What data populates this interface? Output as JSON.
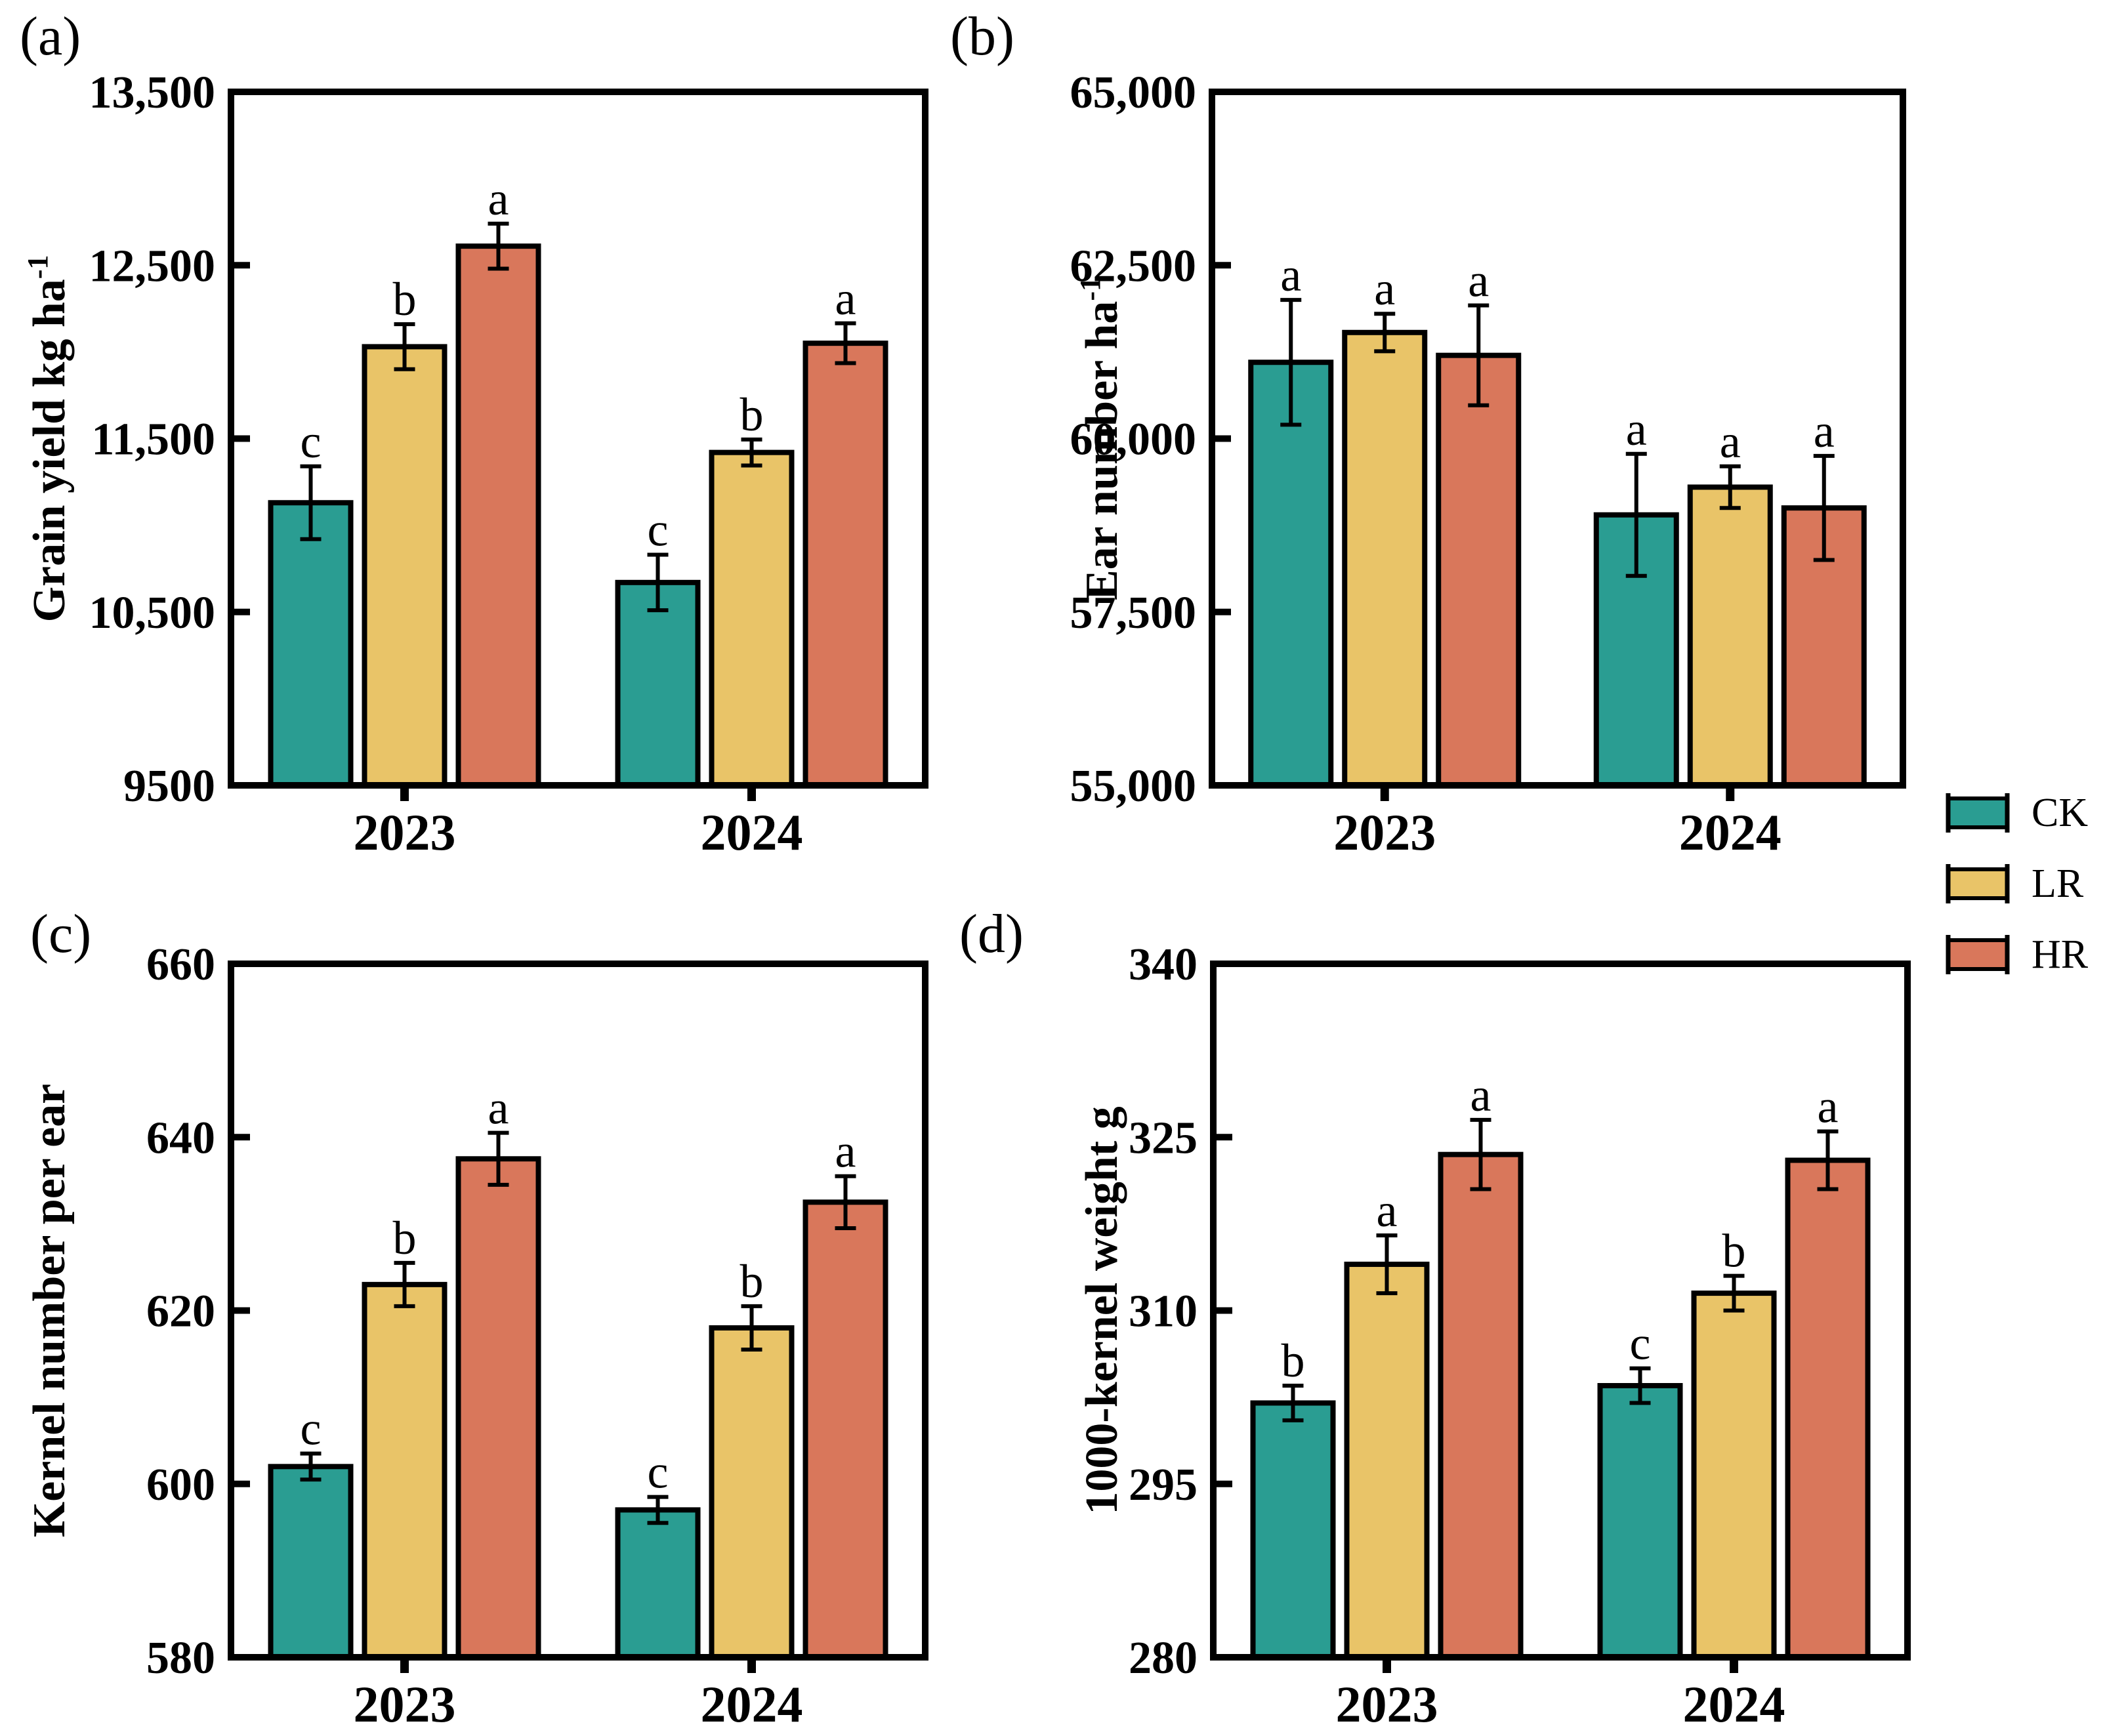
{
  "figure": {
    "background": "#ffffff",
    "axis_color": "#000000"
  },
  "legend": {
    "position": "right-middle",
    "items": [
      {
        "name": "CK",
        "color": "#2a9d92"
      },
      {
        "name": "LR",
        "color": "#e9c468"
      },
      {
        "name": "HR",
        "color": "#d9775b"
      }
    ]
  },
  "chart_data": [
    {
      "id": "a",
      "panel_label": "(a)",
      "type": "bar",
      "title": "",
      "ylabel": "Grain yield kg ha",
      "ylabel_sup": "-1",
      "xlabel": "",
      "ylim": [
        9500,
        13500
      ],
      "ytick_values": [
        13500,
        12500,
        11500,
        10500,
        9500
      ],
      "ytick_labels": [
        "13,500",
        "12,500",
        "11,500",
        "10,500",
        "9500"
      ],
      "categories": [
        "2023",
        "2024"
      ],
      "grid": false,
      "series": [
        {
          "name": "CK",
          "values": [
            11130,
            10670
          ],
          "errors": [
            210,
            160
          ],
          "letters": [
            "c",
            "c"
          ]
        },
        {
          "name": "LR",
          "values": [
            12030,
            11420
          ],
          "errors": [
            130,
            75
          ],
          "letters": [
            "b",
            "b"
          ]
        },
        {
          "name": "HR",
          "values": [
            12610,
            12050
          ],
          "errors": [
            130,
            115
          ],
          "letters": [
            "a",
            "a"
          ]
        }
      ]
    },
    {
      "id": "b",
      "panel_label": "(b)",
      "type": "bar",
      "title": "",
      "ylabel": "Ear number ha",
      "ylabel_sup": "-1",
      "xlabel": "",
      "ylim": [
        55000,
        65000
      ],
      "ytick_values": [
        65000,
        62500,
        60000,
        57500,
        55000
      ],
      "ytick_labels": [
        "65,000",
        "62,500",
        "60,000",
        "57,500",
        "55,000"
      ],
      "categories": [
        "2023",
        "2024"
      ],
      "grid": false,
      "series": [
        {
          "name": "CK",
          "values": [
            61100,
            58900
          ],
          "errors": [
            900,
            880
          ],
          "letters": [
            "a",
            "a"
          ]
        },
        {
          "name": "LR",
          "values": [
            61530,
            59300
          ],
          "errors": [
            270,
            300
          ],
          "letters": [
            "a",
            "a"
          ]
        },
        {
          "name": "HR",
          "values": [
            61200,
            59000
          ],
          "errors": [
            720,
            750
          ],
          "letters": [
            "a",
            "a"
          ]
        }
      ]
    },
    {
      "id": "c",
      "panel_label": "(c)",
      "type": "bar",
      "title": "",
      "ylabel": "Kernel number per ear",
      "ylabel_sup": "",
      "xlabel": "",
      "ylim": [
        580,
        660
      ],
      "ytick_values": [
        660,
        640,
        620,
        600,
        580
      ],
      "ytick_labels": [
        "660",
        "640",
        "620",
        "600",
        "580"
      ],
      "categories": [
        "2023",
        "2024"
      ],
      "grid": false,
      "series": [
        {
          "name": "CK",
          "values": [
            602,
            597
          ],
          "errors": [
            1.5,
            1.5
          ],
          "letters": [
            "c",
            "c"
          ]
        },
        {
          "name": "LR",
          "values": [
            623,
            618
          ],
          "errors": [
            2.5,
            2.5
          ],
          "letters": [
            "b",
            "b"
          ]
        },
        {
          "name": "HR",
          "values": [
            637.5,
            632.5
          ],
          "errors": [
            3,
            3
          ],
          "letters": [
            "a",
            "a"
          ]
        }
      ]
    },
    {
      "id": "d",
      "panel_label": "(d)",
      "type": "bar",
      "title": "",
      "ylabel": "1000-kernel weight g",
      "ylabel_sup": "",
      "xlabel": "",
      "ylim": [
        280,
        340
      ],
      "ytick_values": [
        340,
        325,
        310,
        295,
        280
      ],
      "ytick_labels": [
        "340",
        "325",
        "310",
        "295",
        "280"
      ],
      "categories": [
        "2023",
        "2024"
      ],
      "grid": false,
      "series": [
        {
          "name": "CK",
          "values": [
            302,
            303.5
          ],
          "errors": [
            1.5,
            1.5
          ],
          "letters": [
            "b",
            "c"
          ]
        },
        {
          "name": "LR",
          "values": [
            314,
            311.5
          ],
          "errors": [
            2.5,
            1.5
          ],
          "letters": [
            "a",
            "b"
          ]
        },
        {
          "name": "HR",
          "values": [
            323.5,
            323
          ],
          "errors": [
            3,
            2.5
          ],
          "letters": [
            "a",
            "a"
          ]
        }
      ]
    }
  ]
}
